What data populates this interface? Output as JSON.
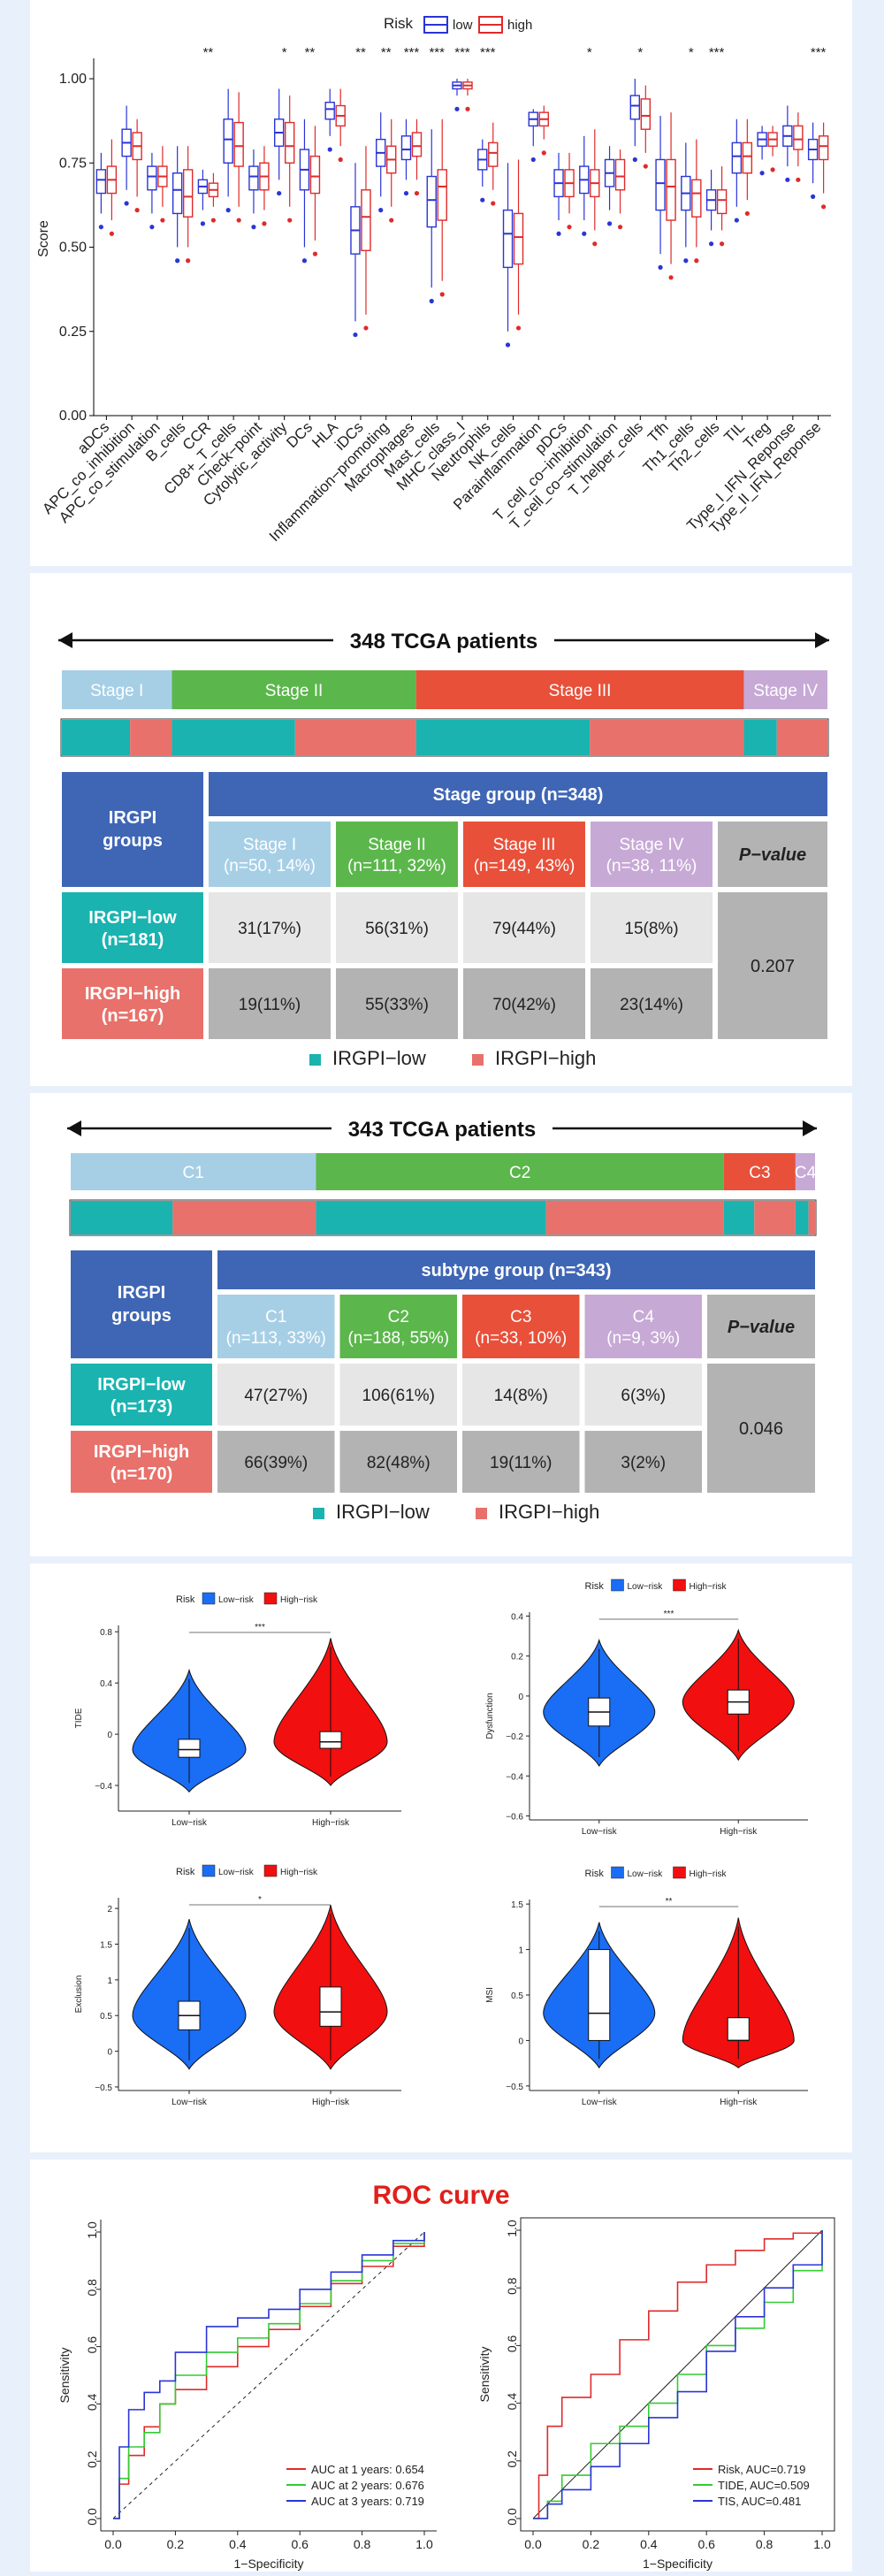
{
  "boxplot": {
    "legend_title": "Risk",
    "legend_low": "low",
    "legend_high": "high",
    "ylabel": "Score",
    "yticks": [
      "0.00",
      "0.25",
      "0.50",
      "0.75",
      "1.00"
    ],
    "colors": {
      "low": "#2a35d6",
      "high": "#e02a2a"
    }
  },
  "stage_table": {
    "title": "348 TCGA patients",
    "bar": [
      {
        "label": "Stage I",
        "n": 50,
        "color": "#a6cfe6"
      },
      {
        "label": "Stage II",
        "n": 111,
        "color": "#5bb74b"
      },
      {
        "label": "Stage III",
        "n": 149,
        "color": "#e8503a"
      },
      {
        "label": "Stage IV",
        "n": 38,
        "color": "#c7a9d6"
      }
    ],
    "risk_strip": [
      [
        31,
        19
      ],
      [
        56,
        55
      ],
      [
        79,
        70
      ],
      [
        15,
        23
      ]
    ],
    "header_left": "IRGPI groups",
    "group_header": "Stage group (n=348)",
    "cols": [
      "Stage I\n(n=50, 14%)",
      "Stage II\n(n=111, 32%)",
      "Stage III\n(n=149, 43%)",
      "Stage IV\n(n=38, 11%)"
    ],
    "pvalue_label": "P−value",
    "rows": [
      {
        "label": "IRGPI−low\n(n=181)",
        "cells": [
          "31(17%)",
          "56(31%)",
          "79(44%)",
          "15(8%)"
        ]
      },
      {
        "label": "IRGPI−high\n(n=167)",
        "cells": [
          "19(11%)",
          "55(33%)",
          "70(42%)",
          "23(14%)"
        ]
      }
    ],
    "pvalue": "0.207",
    "legend": [
      "IRGPI−low",
      "IRGPI−high"
    ]
  },
  "subtype_table": {
    "title": "343 TCGA patients",
    "bar": [
      {
        "label": "C1",
        "n": 113,
        "color": "#a6cfe6"
      },
      {
        "label": "C2",
        "n": 188,
        "color": "#5bb74b"
      },
      {
        "label": "C3",
        "n": 33,
        "color": "#e8503a"
      },
      {
        "label": "C4",
        "n": 9,
        "color": "#c7a9d6"
      }
    ],
    "risk_strip": [
      [
        47,
        66
      ],
      [
        106,
        82
      ],
      [
        14,
        19
      ],
      [
        6,
        3
      ]
    ],
    "header_left": "IRGPI groups",
    "group_header": "subtype group (n=343)",
    "cols": [
      "C1\n(n=113, 33%)",
      "C2\n(n=188, 55%)",
      "C3\n(n=33, 10%)",
      "C4\n(n=9, 3%)"
    ],
    "pvalue_label": "P−value",
    "rows": [
      {
        "label": "IRGPI−low\n(n=173)",
        "cells": [
          "47(27%)",
          "106(61%)",
          "14(8%)",
          "6(3%)"
        ]
      },
      {
        "label": "IRGPI−high\n(n=170)",
        "cells": [
          "66(39%)",
          "82(48%)",
          "19(11%)",
          "3(2%)"
        ]
      }
    ],
    "pvalue": "0.046",
    "legend": [
      "IRGPI−low",
      "IRGPI−high"
    ]
  },
  "violin_legend": {
    "title": "Risk",
    "low": "Low−risk",
    "high": "High−risk"
  },
  "roc": {
    "title": "ROC curve",
    "xlabel": "1−Specificity",
    "ylabel": "Sensitivity",
    "ticks": [
      "0.0",
      "0.2",
      "0.4",
      "0.6",
      "0.8",
      "1.0"
    ],
    "left_legend": [
      "AUC at 1 years: 0.654",
      "AUC at 2 years: 0.676",
      "AUC at 3 years: 0.719"
    ],
    "right_legend": [
      "Risk, AUC=0.719",
      "TIDE, AUC=0.509",
      "TIS, AUC=0.481"
    ]
  },
  "chart_data": [
    {
      "type": "box",
      "ylabel": "Score",
      "ylim": [
        0,
        1.05
      ],
      "categories": [
        "aDCs",
        "APC_co_inhibition",
        "APC_co_stimulation",
        "B_cells",
        "CCR",
        "CD8+_T_cells",
        "Check−point",
        "Cytolytic_activity",
        "DCs",
        "HLA",
        "iDCs",
        "Inflammation−promoting",
        "Macrophages",
        "Mast_cells",
        "MHC_class_I",
        "Neutrophils",
        "NK_cells",
        "Parainflammation",
        "pDCs",
        "T_cell_co−inhibition",
        "T_cell_co−stimulation",
        "T_helper_cells",
        "Tfh",
        "Th1_cells",
        "Th2_cells",
        "TIL",
        "Treg",
        "Type_I_IFN_Reponse",
        "Type_II_IFN_Reponse"
      ],
      "significance": [
        "",
        "",
        "",
        "",
        "**",
        "",
        "",
        "*",
        "**",
        "",
        "**",
        "**",
        "***",
        "***",
        "***",
        "***",
        "",
        "",
        "",
        "*",
        "",
        "*",
        "",
        "*",
        "***",
        "",
        "",
        "",
        "***"
      ],
      "series": [
        {
          "name": "low",
          "median": [
            0.7,
            0.81,
            0.71,
            0.67,
            0.68,
            0.82,
            0.71,
            0.84,
            0.73,
            0.91,
            0.55,
            0.78,
            0.79,
            0.64,
            0.98,
            0.76,
            0.54,
            0.88,
            0.69,
            0.7,
            0.72,
            0.92,
            0.69,
            0.66,
            0.64,
            0.77,
            0.82,
            0.83,
            0.79
          ],
          "q1": [
            0.66,
            0.77,
            0.67,
            0.6,
            0.66,
            0.75,
            0.67,
            0.8,
            0.67,
            0.88,
            0.48,
            0.74,
            0.76,
            0.56,
            0.97,
            0.73,
            0.44,
            0.86,
            0.65,
            0.66,
            0.68,
            0.88,
            0.61,
            0.61,
            0.61,
            0.72,
            0.8,
            0.8,
            0.76
          ],
          "q3": [
            0.73,
            0.85,
            0.74,
            0.72,
            0.7,
            0.88,
            0.74,
            0.88,
            0.79,
            0.93,
            0.62,
            0.82,
            0.83,
            0.71,
            0.99,
            0.79,
            0.61,
            0.9,
            0.73,
            0.74,
            0.76,
            0.95,
            0.76,
            0.71,
            0.67,
            0.81,
            0.84,
            0.86,
            0.82
          ],
          "min": [
            0.6,
            0.67,
            0.6,
            0.5,
            0.61,
            0.65,
            0.6,
            0.7,
            0.5,
            0.83,
            0.28,
            0.65,
            0.7,
            0.38,
            0.95,
            0.68,
            0.25,
            0.8,
            0.58,
            0.58,
            0.61,
            0.8,
            0.48,
            0.5,
            0.55,
            0.62,
            0.76,
            0.74,
            0.69
          ],
          "max": [
            0.78,
            0.92,
            0.78,
            0.8,
            0.73,
            0.97,
            0.79,
            0.97,
            0.88,
            0.97,
            0.75,
            0.9,
            0.88,
            0.85,
            1.0,
            0.82,
            0.75,
            0.91,
            0.78,
            0.83,
            0.8,
            1.0,
            0.89,
            0.81,
            0.73,
            0.88,
            0.86,
            0.92,
            0.87
          ]
        },
        {
          "name": "high",
          "median": [
            0.7,
            0.8,
            0.71,
            0.65,
            0.67,
            0.8,
            0.71,
            0.8,
            0.71,
            0.89,
            0.59,
            0.76,
            0.8,
            0.68,
            0.98,
            0.78,
            0.53,
            0.88,
            0.69,
            0.69,
            0.71,
            0.89,
            0.68,
            0.66,
            0.64,
            0.77,
            0.82,
            0.82,
            0.8
          ],
          "q1": [
            0.66,
            0.76,
            0.68,
            0.59,
            0.65,
            0.74,
            0.67,
            0.75,
            0.66,
            0.86,
            0.49,
            0.72,
            0.77,
            0.58,
            0.97,
            0.74,
            0.45,
            0.86,
            0.65,
            0.65,
            0.67,
            0.85,
            0.58,
            0.59,
            0.6,
            0.72,
            0.8,
            0.79,
            0.76
          ],
          "q3": [
            0.74,
            0.84,
            0.74,
            0.73,
            0.69,
            0.87,
            0.75,
            0.87,
            0.77,
            0.92,
            0.67,
            0.8,
            0.84,
            0.73,
            0.99,
            0.81,
            0.6,
            0.9,
            0.73,
            0.73,
            0.76,
            0.94,
            0.76,
            0.7,
            0.67,
            0.81,
            0.84,
            0.86,
            0.83
          ],
          "min": [
            0.58,
            0.65,
            0.62,
            0.5,
            0.62,
            0.62,
            0.61,
            0.62,
            0.52,
            0.8,
            0.3,
            0.62,
            0.7,
            0.4,
            0.95,
            0.67,
            0.3,
            0.82,
            0.6,
            0.55,
            0.6,
            0.78,
            0.45,
            0.5,
            0.55,
            0.64,
            0.77,
            0.74,
            0.66
          ],
          "max": [
            0.82,
            0.88,
            0.8,
            0.8,
            0.72,
            0.96,
            0.8,
            0.95,
            0.86,
            0.97,
            0.8,
            0.88,
            0.88,
            0.88,
            1.0,
            0.87,
            0.76,
            0.92,
            0.78,
            0.85,
            0.79,
            0.98,
            0.9,
            0.82,
            0.74,
            0.88,
            0.86,
            0.9,
            0.87
          ]
        }
      ]
    },
    {
      "type": "violin",
      "ylabel": "TIDE",
      "xlabel": "",
      "categories": [
        "Low−risk",
        "High−risk"
      ],
      "yticks": [
        -0.4,
        0,
        0.4,
        0.8
      ],
      "ylim": [
        -0.6,
        0.85
      ],
      "significance": "***",
      "median": [
        -0.12,
        -0.06
      ],
      "q1": [
        -0.18,
        -0.11
      ],
      "q3": [
        -0.04,
        0.02
      ],
      "range": [
        [
          -0.45,
          0.5
        ],
        [
          -0.4,
          0.75
        ]
      ]
    },
    {
      "type": "violin",
      "ylabel": "Dysfunction",
      "xlabel": "",
      "categories": [
        "Low−risk",
        "High−risk"
      ],
      "yticks": [
        -0.6,
        -0.4,
        -0.2,
        0,
        0.2,
        0.4
      ],
      "ylim": [
        -0.62,
        0.42
      ],
      "significance": "***",
      "median": [
        -0.08,
        -0.03
      ],
      "q1": [
        -0.15,
        -0.09
      ],
      "q3": [
        -0.01,
        0.03
      ],
      "range": [
        [
          -0.35,
          0.28
        ],
        [
          -0.32,
          0.33
        ]
      ]
    },
    {
      "type": "violin",
      "ylabel": "Exclusion",
      "xlabel": "",
      "categories": [
        "Low−risk",
        "High−risk"
      ],
      "yticks": [
        -0.5,
        0,
        0.5,
        1,
        1.5,
        2
      ],
      "ylim": [
        -0.55,
        2.15
      ],
      "significance": "*",
      "median": [
        0.5,
        0.55
      ],
      "q1": [
        0.3,
        0.35
      ],
      "q3": [
        0.7,
        0.9
      ],
      "range": [
        [
          -0.25,
          1.85
        ],
        [
          -0.25,
          2.05
        ]
      ]
    },
    {
      "type": "violin",
      "ylabel": "MSI",
      "xlabel": "",
      "categories": [
        "Low−risk",
        "High−risk"
      ],
      "yticks": [
        -0.5,
        0,
        0.5,
        1,
        1.5
      ],
      "ylim": [
        -0.55,
        1.55
      ],
      "significance": "**",
      "median": [
        0.3,
        0.0
      ],
      "q1": [
        0.0,
        0.0
      ],
      "q3": [
        1.0,
        0.25
      ],
      "range": [
        [
          -0.3,
          1.3
        ],
        [
          -0.3,
          1.35
        ]
      ]
    },
    {
      "type": "line",
      "title": "ROC curve",
      "xlabel": "1−Specificity",
      "ylabel": "Sensitivity",
      "xlim": [
        0,
        1
      ],
      "ylim": [
        0,
        1
      ],
      "series": [
        {
          "name": "AUC at 1 years: 0.654",
          "color": "#e02a2a",
          "x": [
            0,
            0.02,
            0.05,
            0.1,
            0.15,
            0.2,
            0.3,
            0.4,
            0.5,
            0.6,
            0.7,
            0.8,
            0.9,
            1.0
          ],
          "y": [
            0,
            0.12,
            0.22,
            0.32,
            0.4,
            0.45,
            0.53,
            0.6,
            0.66,
            0.74,
            0.82,
            0.88,
            0.95,
            1.0
          ]
        },
        {
          "name": "AUC at 2 years: 0.676",
          "color": "#33cc33",
          "x": [
            0,
            0.02,
            0.05,
            0.1,
            0.15,
            0.2,
            0.3,
            0.4,
            0.5,
            0.6,
            0.7,
            0.8,
            0.9,
            1.0
          ],
          "y": [
            0,
            0.14,
            0.25,
            0.3,
            0.4,
            0.5,
            0.58,
            0.63,
            0.68,
            0.75,
            0.83,
            0.9,
            0.96,
            1.0
          ]
        },
        {
          "name": "AUC at 3 years: 0.719",
          "color": "#2a35d6",
          "x": [
            0,
            0.02,
            0.05,
            0.1,
            0.15,
            0.2,
            0.3,
            0.4,
            0.5,
            0.6,
            0.7,
            0.8,
            0.9,
            1.0
          ],
          "y": [
            0,
            0.25,
            0.38,
            0.44,
            0.48,
            0.58,
            0.67,
            0.7,
            0.73,
            0.8,
            0.86,
            0.92,
            0.97,
            1.0
          ]
        }
      ]
    },
    {
      "type": "line",
      "title": "",
      "xlabel": "1−Specificity",
      "ylabel": "Sensitivity",
      "xlim": [
        0,
        1
      ],
      "ylim": [
        0,
        1
      ],
      "series": [
        {
          "name": "Risk, AUC=0.719",
          "color": "#e02a2a",
          "x": [
            0,
            0.02,
            0.05,
            0.1,
            0.2,
            0.3,
            0.4,
            0.5,
            0.6,
            0.7,
            0.8,
            0.9,
            1.0
          ],
          "y": [
            0,
            0.15,
            0.32,
            0.42,
            0.5,
            0.62,
            0.72,
            0.82,
            0.88,
            0.93,
            0.97,
            0.99,
            1.0
          ]
        },
        {
          "name": "TIDE, AUC=0.509",
          "color": "#33cc33",
          "x": [
            0,
            0.05,
            0.1,
            0.2,
            0.3,
            0.4,
            0.5,
            0.6,
            0.7,
            0.8,
            0.9,
            1.0
          ],
          "y": [
            0,
            0.06,
            0.15,
            0.26,
            0.32,
            0.4,
            0.5,
            0.6,
            0.66,
            0.75,
            0.86,
            1.0
          ]
        },
        {
          "name": "TIS, AUC=0.481",
          "color": "#2a35d6",
          "x": [
            0,
            0.05,
            0.1,
            0.2,
            0.3,
            0.4,
            0.5,
            0.6,
            0.7,
            0.8,
            0.9,
            1.0
          ],
          "y": [
            0,
            0.05,
            0.1,
            0.18,
            0.26,
            0.35,
            0.44,
            0.58,
            0.7,
            0.8,
            0.88,
            1.0
          ]
        }
      ]
    }
  ]
}
